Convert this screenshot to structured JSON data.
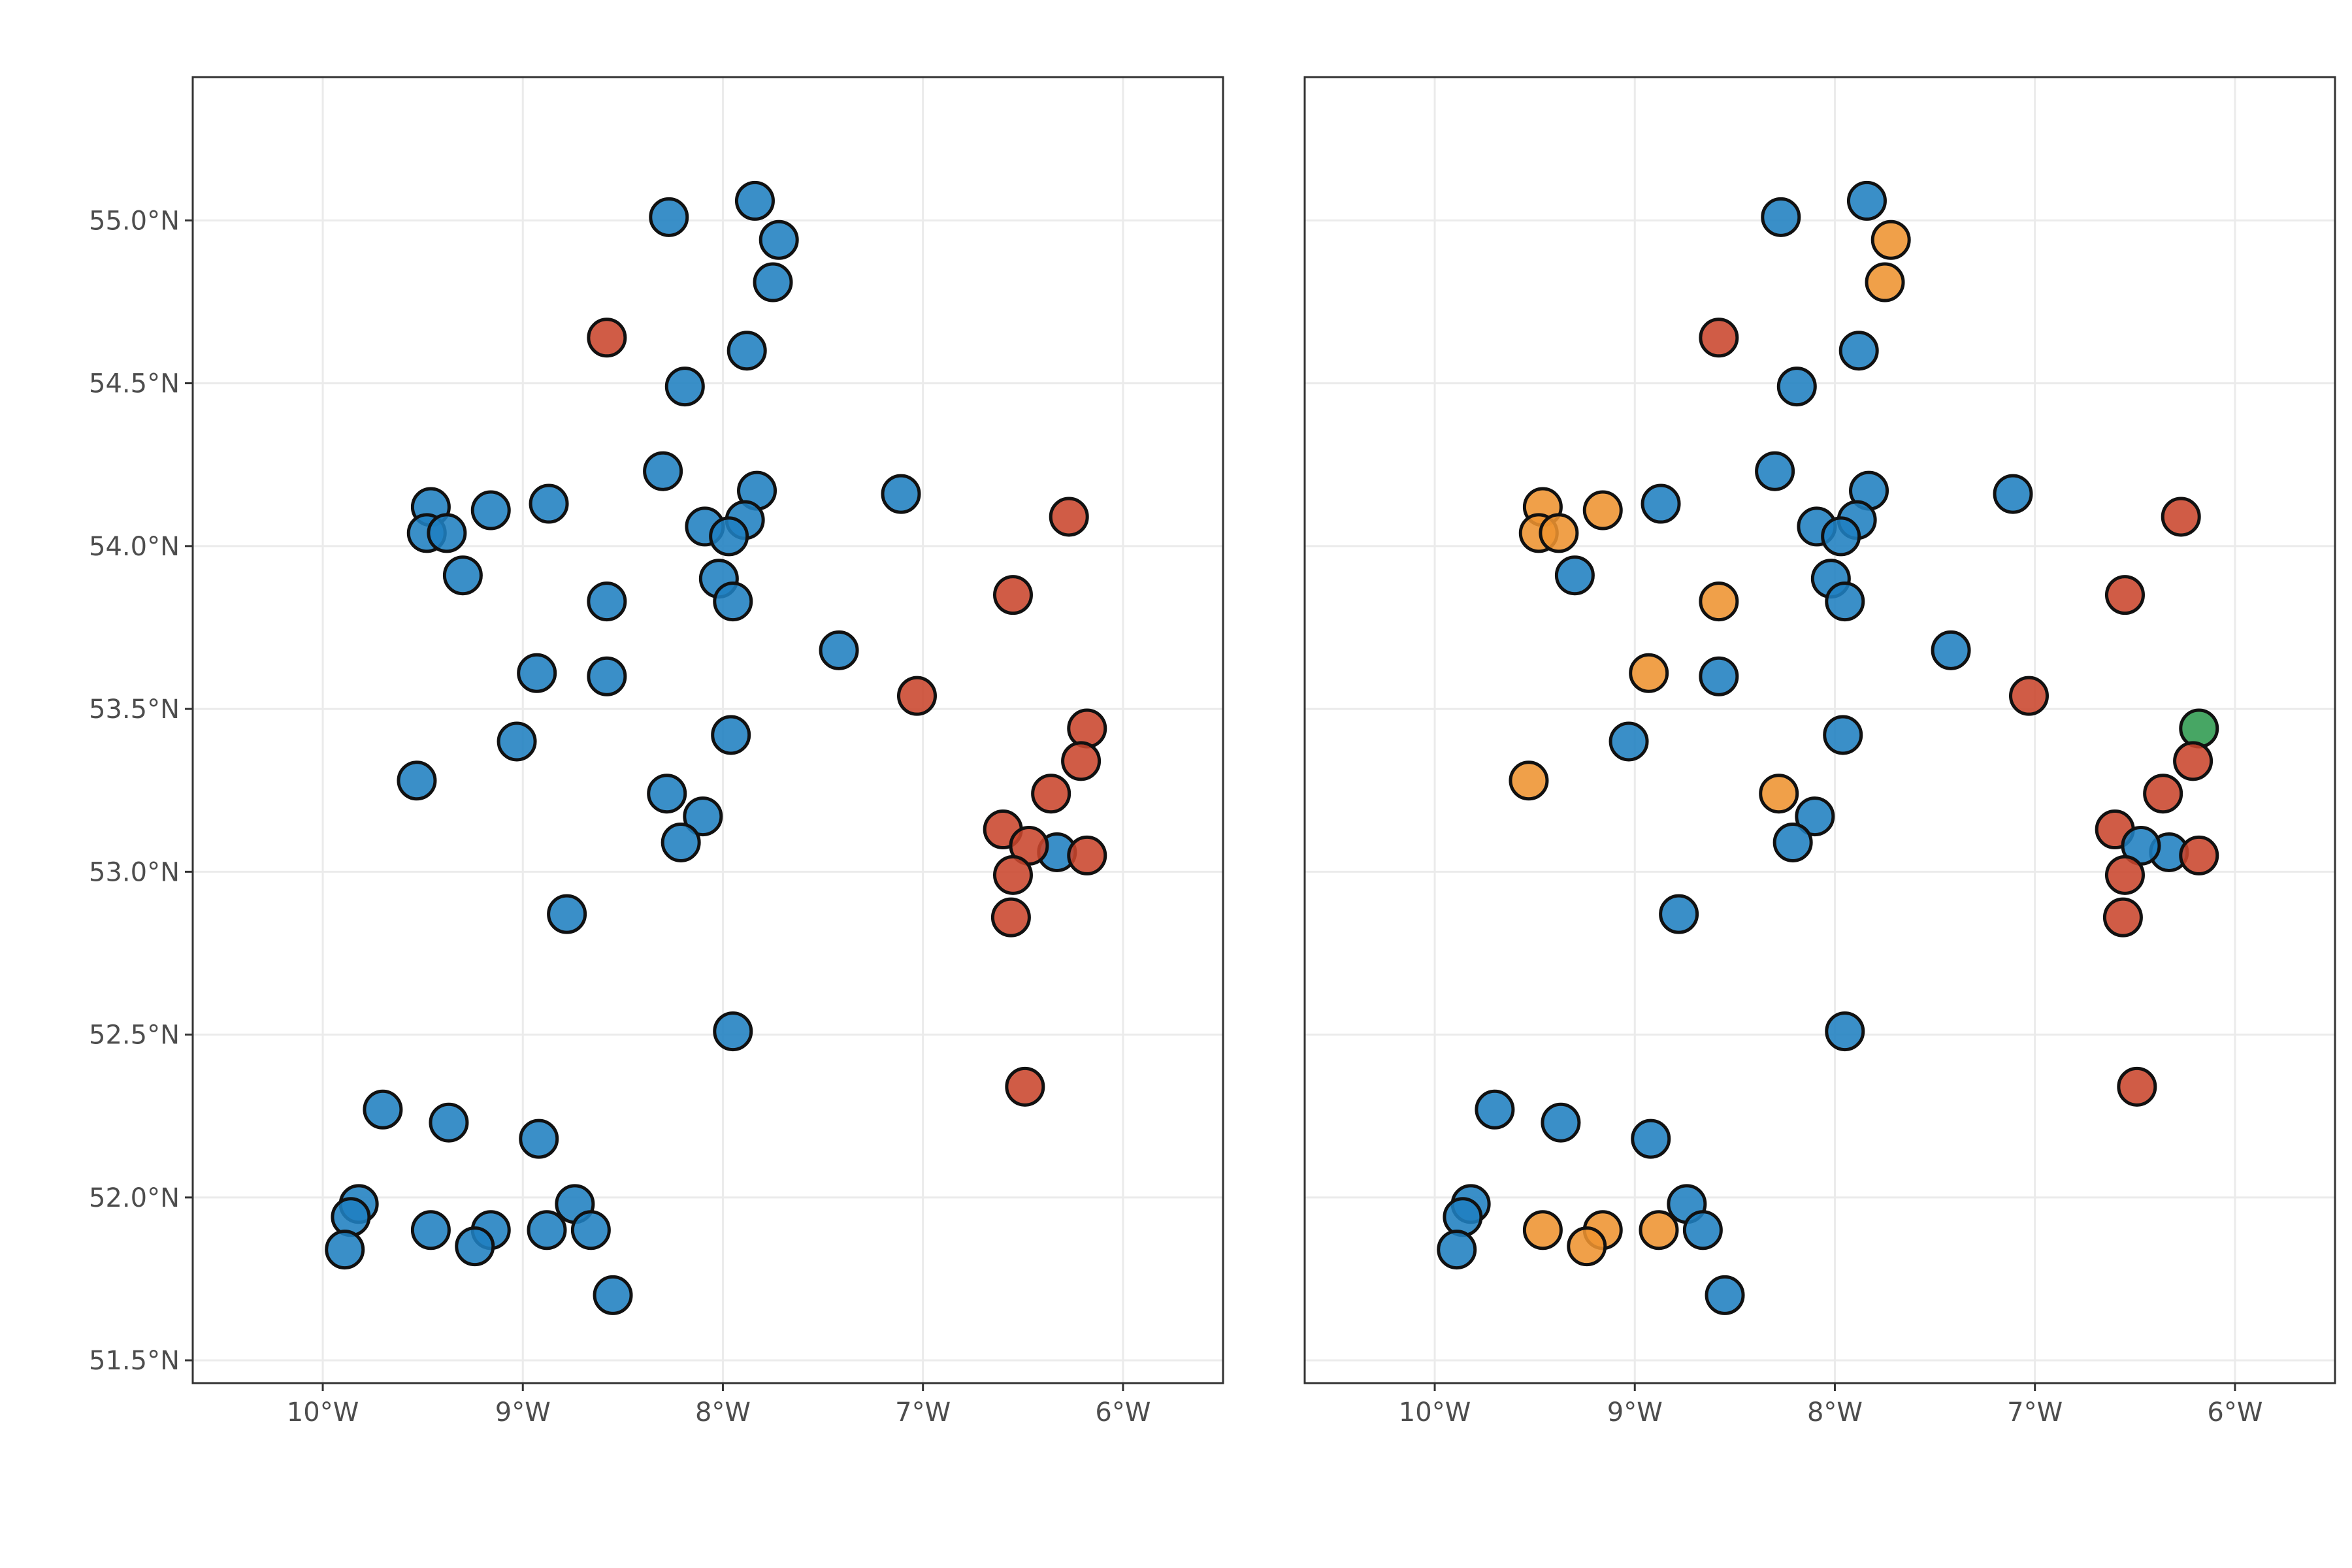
{
  "chart_data": {
    "type": "map",
    "panels": [
      {
        "name": "left",
        "x_ticks": [
          {
            "value": -10,
            "label": "10°W"
          },
          {
            "value": -9,
            "label": "9°W"
          },
          {
            "value": -8,
            "label": "8°W"
          },
          {
            "value": -7,
            "label": "7°W"
          },
          {
            "value": -6,
            "label": "6°W"
          }
        ],
        "y_ticks": [
          {
            "value": 51.5,
            "label": "51.5°N"
          },
          {
            "value": 52.0,
            "label": "52.0°N"
          },
          {
            "value": 52.5,
            "label": "52.5°N"
          },
          {
            "value": 53.0,
            "label": "53.0°N"
          },
          {
            "value": 53.5,
            "label": "53.5°N"
          },
          {
            "value": 54.0,
            "label": "54.0°N"
          },
          {
            "value": 54.5,
            "label": "54.5°N"
          },
          {
            "value": 55.0,
            "label": "55.0°N"
          }
        ],
        "xlim": [
          -10.65,
          -5.5
        ],
        "ylim": [
          51.43,
          55.44
        ],
        "points": [
          {
            "lon": -8.27,
            "lat": 55.01,
            "cls": "blue"
          },
          {
            "lon": -7.84,
            "lat": 55.06,
            "cls": "blue"
          },
          {
            "lon": -7.72,
            "lat": 54.94,
            "cls": "blue"
          },
          {
            "lon": -7.75,
            "lat": 54.81,
            "cls": "blue"
          },
          {
            "lon": -8.58,
            "lat": 54.64,
            "cls": "red"
          },
          {
            "lon": -7.88,
            "lat": 54.6,
            "cls": "blue"
          },
          {
            "lon": -8.19,
            "lat": 54.49,
            "cls": "blue"
          },
          {
            "lon": -8.3,
            "lat": 54.23,
            "cls": "blue"
          },
          {
            "lon": -7.83,
            "lat": 54.17,
            "cls": "blue"
          },
          {
            "lon": -7.11,
            "lat": 54.16,
            "cls": "blue"
          },
          {
            "lon": -9.46,
            "lat": 54.12,
            "cls": "blue"
          },
          {
            "lon": -9.16,
            "lat": 54.11,
            "cls": "blue"
          },
          {
            "lon": -8.87,
            "lat": 54.13,
            "cls": "blue"
          },
          {
            "lon": -9.48,
            "lat": 54.04,
            "cls": "blue"
          },
          {
            "lon": -9.38,
            "lat": 54.04,
            "cls": "blue"
          },
          {
            "lon": -8.09,
            "lat": 54.06,
            "cls": "blue"
          },
          {
            "lon": -7.89,
            "lat": 54.08,
            "cls": "blue"
          },
          {
            "lon": -7.97,
            "lat": 54.03,
            "cls": "blue"
          },
          {
            "lon": -6.27,
            "lat": 54.09,
            "cls": "red"
          },
          {
            "lon": -9.3,
            "lat": 53.91,
            "cls": "blue"
          },
          {
            "lon": -8.02,
            "lat": 53.9,
            "cls": "blue"
          },
          {
            "lon": -6.55,
            "lat": 53.85,
            "cls": "red"
          },
          {
            "lon": -8.58,
            "lat": 53.83,
            "cls": "blue"
          },
          {
            "lon": -7.95,
            "lat": 53.83,
            "cls": "blue"
          },
          {
            "lon": -7.42,
            "lat": 53.68,
            "cls": "blue"
          },
          {
            "lon": -8.93,
            "lat": 53.61,
            "cls": "blue"
          },
          {
            "lon": -8.58,
            "lat": 53.6,
            "cls": "blue"
          },
          {
            "lon": -7.03,
            "lat": 53.54,
            "cls": "red"
          },
          {
            "lon": -6.18,
            "lat": 53.44,
            "cls": "red"
          },
          {
            "lon": -7.96,
            "lat": 53.42,
            "cls": "blue"
          },
          {
            "lon": -9.03,
            "lat": 53.4,
            "cls": "blue"
          },
          {
            "lon": -6.21,
            "lat": 53.34,
            "cls": "red"
          },
          {
            "lon": -9.53,
            "lat": 53.28,
            "cls": "blue"
          },
          {
            "lon": -6.36,
            "lat": 53.24,
            "cls": "red"
          },
          {
            "lon": -8.28,
            "lat": 53.24,
            "cls": "blue"
          },
          {
            "lon": -8.1,
            "lat": 53.17,
            "cls": "blue"
          },
          {
            "lon": -6.6,
            "lat": 53.13,
            "cls": "red"
          },
          {
            "lon": -8.21,
            "lat": 53.09,
            "cls": "blue"
          },
          {
            "lon": -6.33,
            "lat": 53.06,
            "cls": "blue"
          },
          {
            "lon": -6.47,
            "lat": 53.08,
            "cls": "red"
          },
          {
            "lon": -6.18,
            "lat": 53.05,
            "cls": "red"
          },
          {
            "lon": -6.55,
            "lat": 52.99,
            "cls": "red"
          },
          {
            "lon": -8.78,
            "lat": 52.87,
            "cls": "blue"
          },
          {
            "lon": -6.56,
            "lat": 52.86,
            "cls": "red"
          },
          {
            "lon": -7.95,
            "lat": 52.51,
            "cls": "blue"
          },
          {
            "lon": -6.49,
            "lat": 52.34,
            "cls": "red"
          },
          {
            "lon": -9.7,
            "lat": 52.27,
            "cls": "blue"
          },
          {
            "lon": -9.37,
            "lat": 52.23,
            "cls": "blue"
          },
          {
            "lon": -8.92,
            "lat": 52.18,
            "cls": "blue"
          },
          {
            "lon": -9.82,
            "lat": 51.98,
            "cls": "blue"
          },
          {
            "lon": -9.86,
            "lat": 51.94,
            "cls": "blue"
          },
          {
            "lon": -8.74,
            "lat": 51.98,
            "cls": "blue"
          },
          {
            "lon": -9.46,
            "lat": 51.9,
            "cls": "blue"
          },
          {
            "lon": -9.16,
            "lat": 51.9,
            "cls": "blue"
          },
          {
            "lon": -8.88,
            "lat": 51.9,
            "cls": "blue"
          },
          {
            "lon": -8.66,
            "lat": 51.9,
            "cls": "blue"
          },
          {
            "lon": -9.24,
            "lat": 51.85,
            "cls": "blue"
          },
          {
            "lon": -9.89,
            "lat": 51.84,
            "cls": "blue"
          },
          {
            "lon": -8.55,
            "lat": 51.7,
            "cls": "blue"
          }
        ]
      },
      {
        "name": "right",
        "x_ticks": [
          {
            "value": -10,
            "label": "10°W"
          },
          {
            "value": -9,
            "label": "9°W"
          },
          {
            "value": -8,
            "label": "8°W"
          },
          {
            "value": -7,
            "label": "7°W"
          },
          {
            "value": -6,
            "label": "6°W"
          }
        ],
        "y_ticks": [],
        "xlim": [
          -10.65,
          -5.5
        ],
        "ylim": [
          51.43,
          55.44
        ],
        "points": [
          {
            "lon": -8.27,
            "lat": 55.01,
            "cls": "blue"
          },
          {
            "lon": -7.84,
            "lat": 55.06,
            "cls": "blue"
          },
          {
            "lon": -7.72,
            "lat": 54.94,
            "cls": "orange"
          },
          {
            "lon": -7.75,
            "lat": 54.81,
            "cls": "orange"
          },
          {
            "lon": -8.58,
            "lat": 54.64,
            "cls": "red"
          },
          {
            "lon": -7.88,
            "lat": 54.6,
            "cls": "blue"
          },
          {
            "lon": -8.19,
            "lat": 54.49,
            "cls": "blue"
          },
          {
            "lon": -8.3,
            "lat": 54.23,
            "cls": "blue"
          },
          {
            "lon": -7.83,
            "lat": 54.17,
            "cls": "blue"
          },
          {
            "lon": -7.11,
            "lat": 54.16,
            "cls": "blue"
          },
          {
            "lon": -9.46,
            "lat": 54.12,
            "cls": "orange"
          },
          {
            "lon": -9.16,
            "lat": 54.11,
            "cls": "orange"
          },
          {
            "lon": -8.87,
            "lat": 54.13,
            "cls": "blue"
          },
          {
            "lon": -9.48,
            "lat": 54.04,
            "cls": "orange"
          },
          {
            "lon": -9.38,
            "lat": 54.04,
            "cls": "orange"
          },
          {
            "lon": -8.09,
            "lat": 54.06,
            "cls": "blue"
          },
          {
            "lon": -7.89,
            "lat": 54.08,
            "cls": "blue"
          },
          {
            "lon": -7.97,
            "lat": 54.03,
            "cls": "blue"
          },
          {
            "lon": -6.27,
            "lat": 54.09,
            "cls": "red"
          },
          {
            "lon": -9.3,
            "lat": 53.91,
            "cls": "blue"
          },
          {
            "lon": -8.02,
            "lat": 53.9,
            "cls": "blue"
          },
          {
            "lon": -6.55,
            "lat": 53.85,
            "cls": "red"
          },
          {
            "lon": -8.58,
            "lat": 53.83,
            "cls": "orange"
          },
          {
            "lon": -7.95,
            "lat": 53.83,
            "cls": "blue"
          },
          {
            "lon": -7.42,
            "lat": 53.68,
            "cls": "blue"
          },
          {
            "lon": -8.93,
            "lat": 53.61,
            "cls": "orange"
          },
          {
            "lon": -8.58,
            "lat": 53.6,
            "cls": "blue"
          },
          {
            "lon": -7.03,
            "lat": 53.54,
            "cls": "red"
          },
          {
            "lon": -6.18,
            "lat": 53.44,
            "cls": "green"
          },
          {
            "lon": -7.96,
            "lat": 53.42,
            "cls": "blue"
          },
          {
            "lon": -9.03,
            "lat": 53.4,
            "cls": "blue"
          },
          {
            "lon": -6.21,
            "lat": 53.34,
            "cls": "red"
          },
          {
            "lon": -9.53,
            "lat": 53.28,
            "cls": "orange"
          },
          {
            "lon": -6.36,
            "lat": 53.24,
            "cls": "red"
          },
          {
            "lon": -8.28,
            "lat": 53.24,
            "cls": "orange"
          },
          {
            "lon": -8.1,
            "lat": 53.17,
            "cls": "blue"
          },
          {
            "lon": -6.6,
            "lat": 53.13,
            "cls": "red"
          },
          {
            "lon": -8.21,
            "lat": 53.09,
            "cls": "blue"
          },
          {
            "lon": -6.33,
            "lat": 53.06,
            "cls": "blue"
          },
          {
            "lon": -6.47,
            "lat": 53.08,
            "cls": "blue"
          },
          {
            "lon": -6.18,
            "lat": 53.05,
            "cls": "red"
          },
          {
            "lon": -6.55,
            "lat": 52.99,
            "cls": "red"
          },
          {
            "lon": -8.78,
            "lat": 52.87,
            "cls": "blue"
          },
          {
            "lon": -6.56,
            "lat": 52.86,
            "cls": "red"
          },
          {
            "lon": -7.95,
            "lat": 52.51,
            "cls": "blue"
          },
          {
            "lon": -6.49,
            "lat": 52.34,
            "cls": "red"
          },
          {
            "lon": -9.7,
            "lat": 52.27,
            "cls": "blue"
          },
          {
            "lon": -9.37,
            "lat": 52.23,
            "cls": "blue"
          },
          {
            "lon": -8.92,
            "lat": 52.18,
            "cls": "blue"
          },
          {
            "lon": -9.82,
            "lat": 51.98,
            "cls": "blue"
          },
          {
            "lon": -9.86,
            "lat": 51.94,
            "cls": "blue"
          },
          {
            "lon": -8.74,
            "lat": 51.98,
            "cls": "blue"
          },
          {
            "lon": -9.46,
            "lat": 51.9,
            "cls": "orange"
          },
          {
            "lon": -9.16,
            "lat": 51.9,
            "cls": "orange"
          },
          {
            "lon": -8.88,
            "lat": 51.9,
            "cls": "orange"
          },
          {
            "lon": -8.66,
            "lat": 51.9,
            "cls": "blue"
          },
          {
            "lon": -9.24,
            "lat": 51.85,
            "cls": "orange"
          },
          {
            "lon": -9.89,
            "lat": 51.84,
            "cls": "blue"
          },
          {
            "lon": -8.55,
            "lat": 51.7,
            "cls": "blue"
          }
        ]
      }
    ]
  },
  "colors": {
    "blue": "#1f7fc0",
    "red": "#c9452c",
    "orange": "#ee9330",
    "green": "#2e9a4e",
    "terrain_low": "#c9c4ad",
    "terrain_mid": "#b9a272",
    "terrain_high": "#8a3a1e",
    "terrain_peak": "#5a0f10",
    "grid": "#ebebeb",
    "border": "#333333",
    "tick_text": "#4d4d4d"
  }
}
